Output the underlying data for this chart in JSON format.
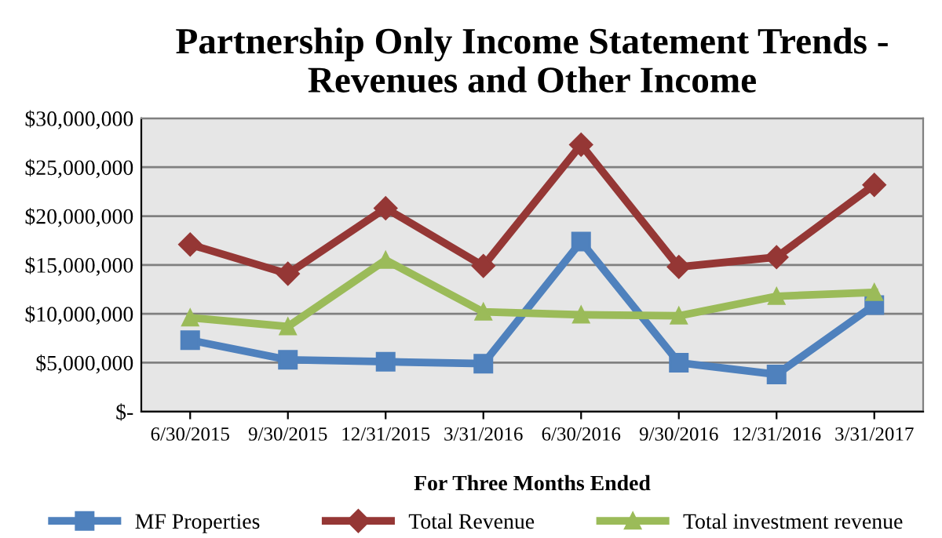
{
  "chart_data": {
    "type": "line",
    "title": "Partnership Only Income Statement Trends -\nRevenues and Other Income",
    "xlabel": "For Three Months Ended",
    "categories": [
      "6/30/2015",
      "9/30/2015",
      "12/31/2015",
      "3/31/2016",
      "6/30/2016",
      "9/30/2016",
      "12/31/2016",
      "3/31/2017"
    ],
    "series": [
      {
        "name": "MF Properties",
        "color": "#4f81bd",
        "marker": "square",
        "values": [
          7300000,
          5300000,
          5100000,
          4900000,
          17400000,
          5000000,
          3800000,
          10900000
        ]
      },
      {
        "name": "Total Revenue",
        "color": "#953735",
        "marker": "diamond",
        "values": [
          17100000,
          14100000,
          20800000,
          14900000,
          27300000,
          14800000,
          15800000,
          23200000
        ]
      },
      {
        "name": "Total investment revenue",
        "color": "#9bbb59",
        "marker": "triangle",
        "values": [
          9600000,
          8700000,
          15500000,
          10200000,
          9900000,
          9800000,
          11800000,
          12200000
        ]
      }
    ],
    "ylim": [
      0,
      30000000
    ],
    "yticks": [
      {
        "value": 0,
        "label": "$-"
      },
      {
        "value": 5000000,
        "label": "$5,000,000"
      },
      {
        "value": 10000000,
        "label": "$10,000,000"
      },
      {
        "value": 15000000,
        "label": "$15,000,000"
      },
      {
        "value": 20000000,
        "label": "$20,000,000"
      },
      {
        "value": 25000000,
        "label": "$25,000,000"
      },
      {
        "value": 30000000,
        "label": "$30,000,000"
      }
    ],
    "grid": "y",
    "legend": "bottom"
  }
}
